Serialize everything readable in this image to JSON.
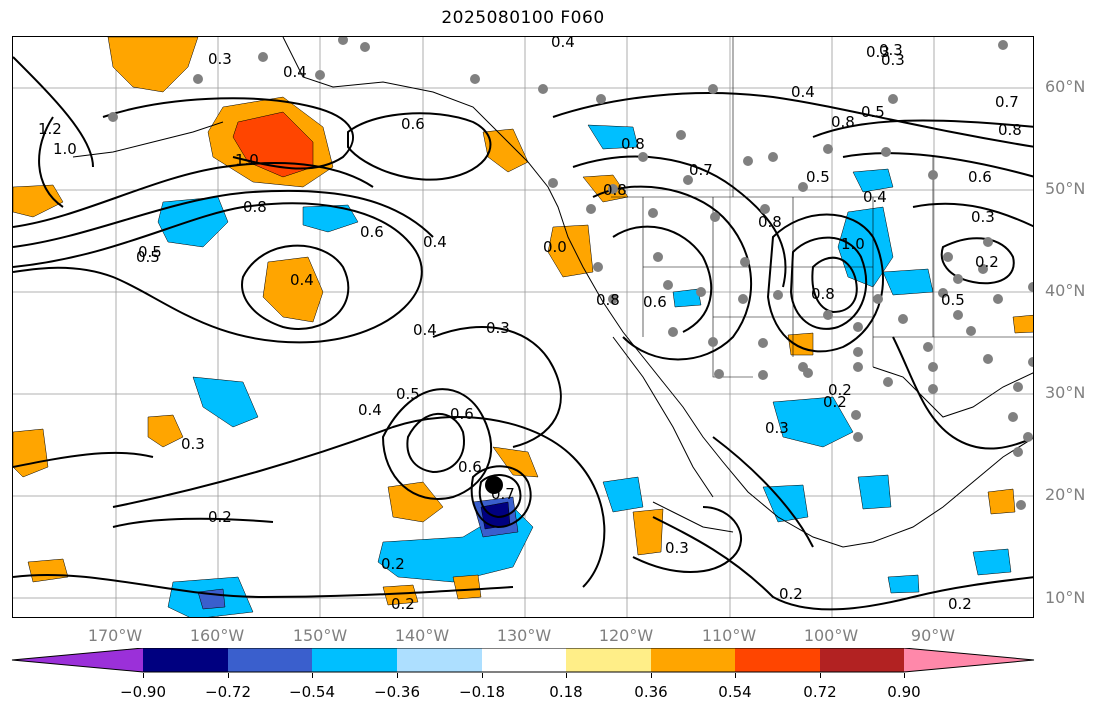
{
  "title": "2025080100 F060",
  "map": {
    "lat_labels": [
      "60°N",
      "50°N",
      "40°N",
      "30°N",
      "20°N",
      "10°N"
    ],
    "lon_labels": [
      "170°W",
      "160°W",
      "150°W",
      "140°W",
      "130°W",
      "120°W",
      "110°W",
      "100°W",
      "90°W"
    ],
    "contour_labels": [
      "0.4",
      "0.3",
      "0.3",
      "0.4",
      "1.2",
      "1.0",
      "1.0",
      "0.6",
      "0.8",
      "0.5",
      "0.4",
      "0.6",
      "0.4",
      "0.4",
      "0.3",
      "0.3",
      "0.4",
      "0.5",
      "0.6",
      "0.6",
      "0.7",
      "0.2",
      "0.2",
      "0.2",
      "0.3",
      "0.2",
      "0.8",
      "0.8",
      "0.7",
      "0.0",
      "0.8",
      "0.8",
      "0.4",
      "0.5",
      "0.8",
      "1.0",
      "0.3",
      "0.2",
      "0.3",
      "0.5",
      "0.4",
      "0.5",
      "0.7",
      "0.8",
      "0.6",
      "0.8",
      "0.3",
      "0.2",
      "0.5",
      "0.6",
      "0.3",
      "0.2",
      "0.2"
    ],
    "fill_colors": {
      "light_orange": "#FFEE88",
      "orange": "#FFA500",
      "red_orange": "#FF4500",
      "light_blue": "#ADDFFF",
      "blue": "#00BFFF",
      "royal_blue": "#3A5FCD",
      "navy": "#000080"
    },
    "marker_color": "#808080"
  },
  "colorbar": {
    "tick_labels": [
      "−0.90",
      "−0.72",
      "−0.54",
      "−0.36",
      "−0.18",
      "0.18",
      "0.36",
      "0.54",
      "0.72",
      "0.90"
    ],
    "segments": [
      "#9B30D9",
      "#000080",
      "#3A5FCD",
      "#00BFFF",
      "#ADDFFF",
      "#FFFFFF",
      "#FFEE88",
      "#FFA500",
      "#FF4500",
      "#B22222",
      "#FF88AA"
    ]
  }
}
